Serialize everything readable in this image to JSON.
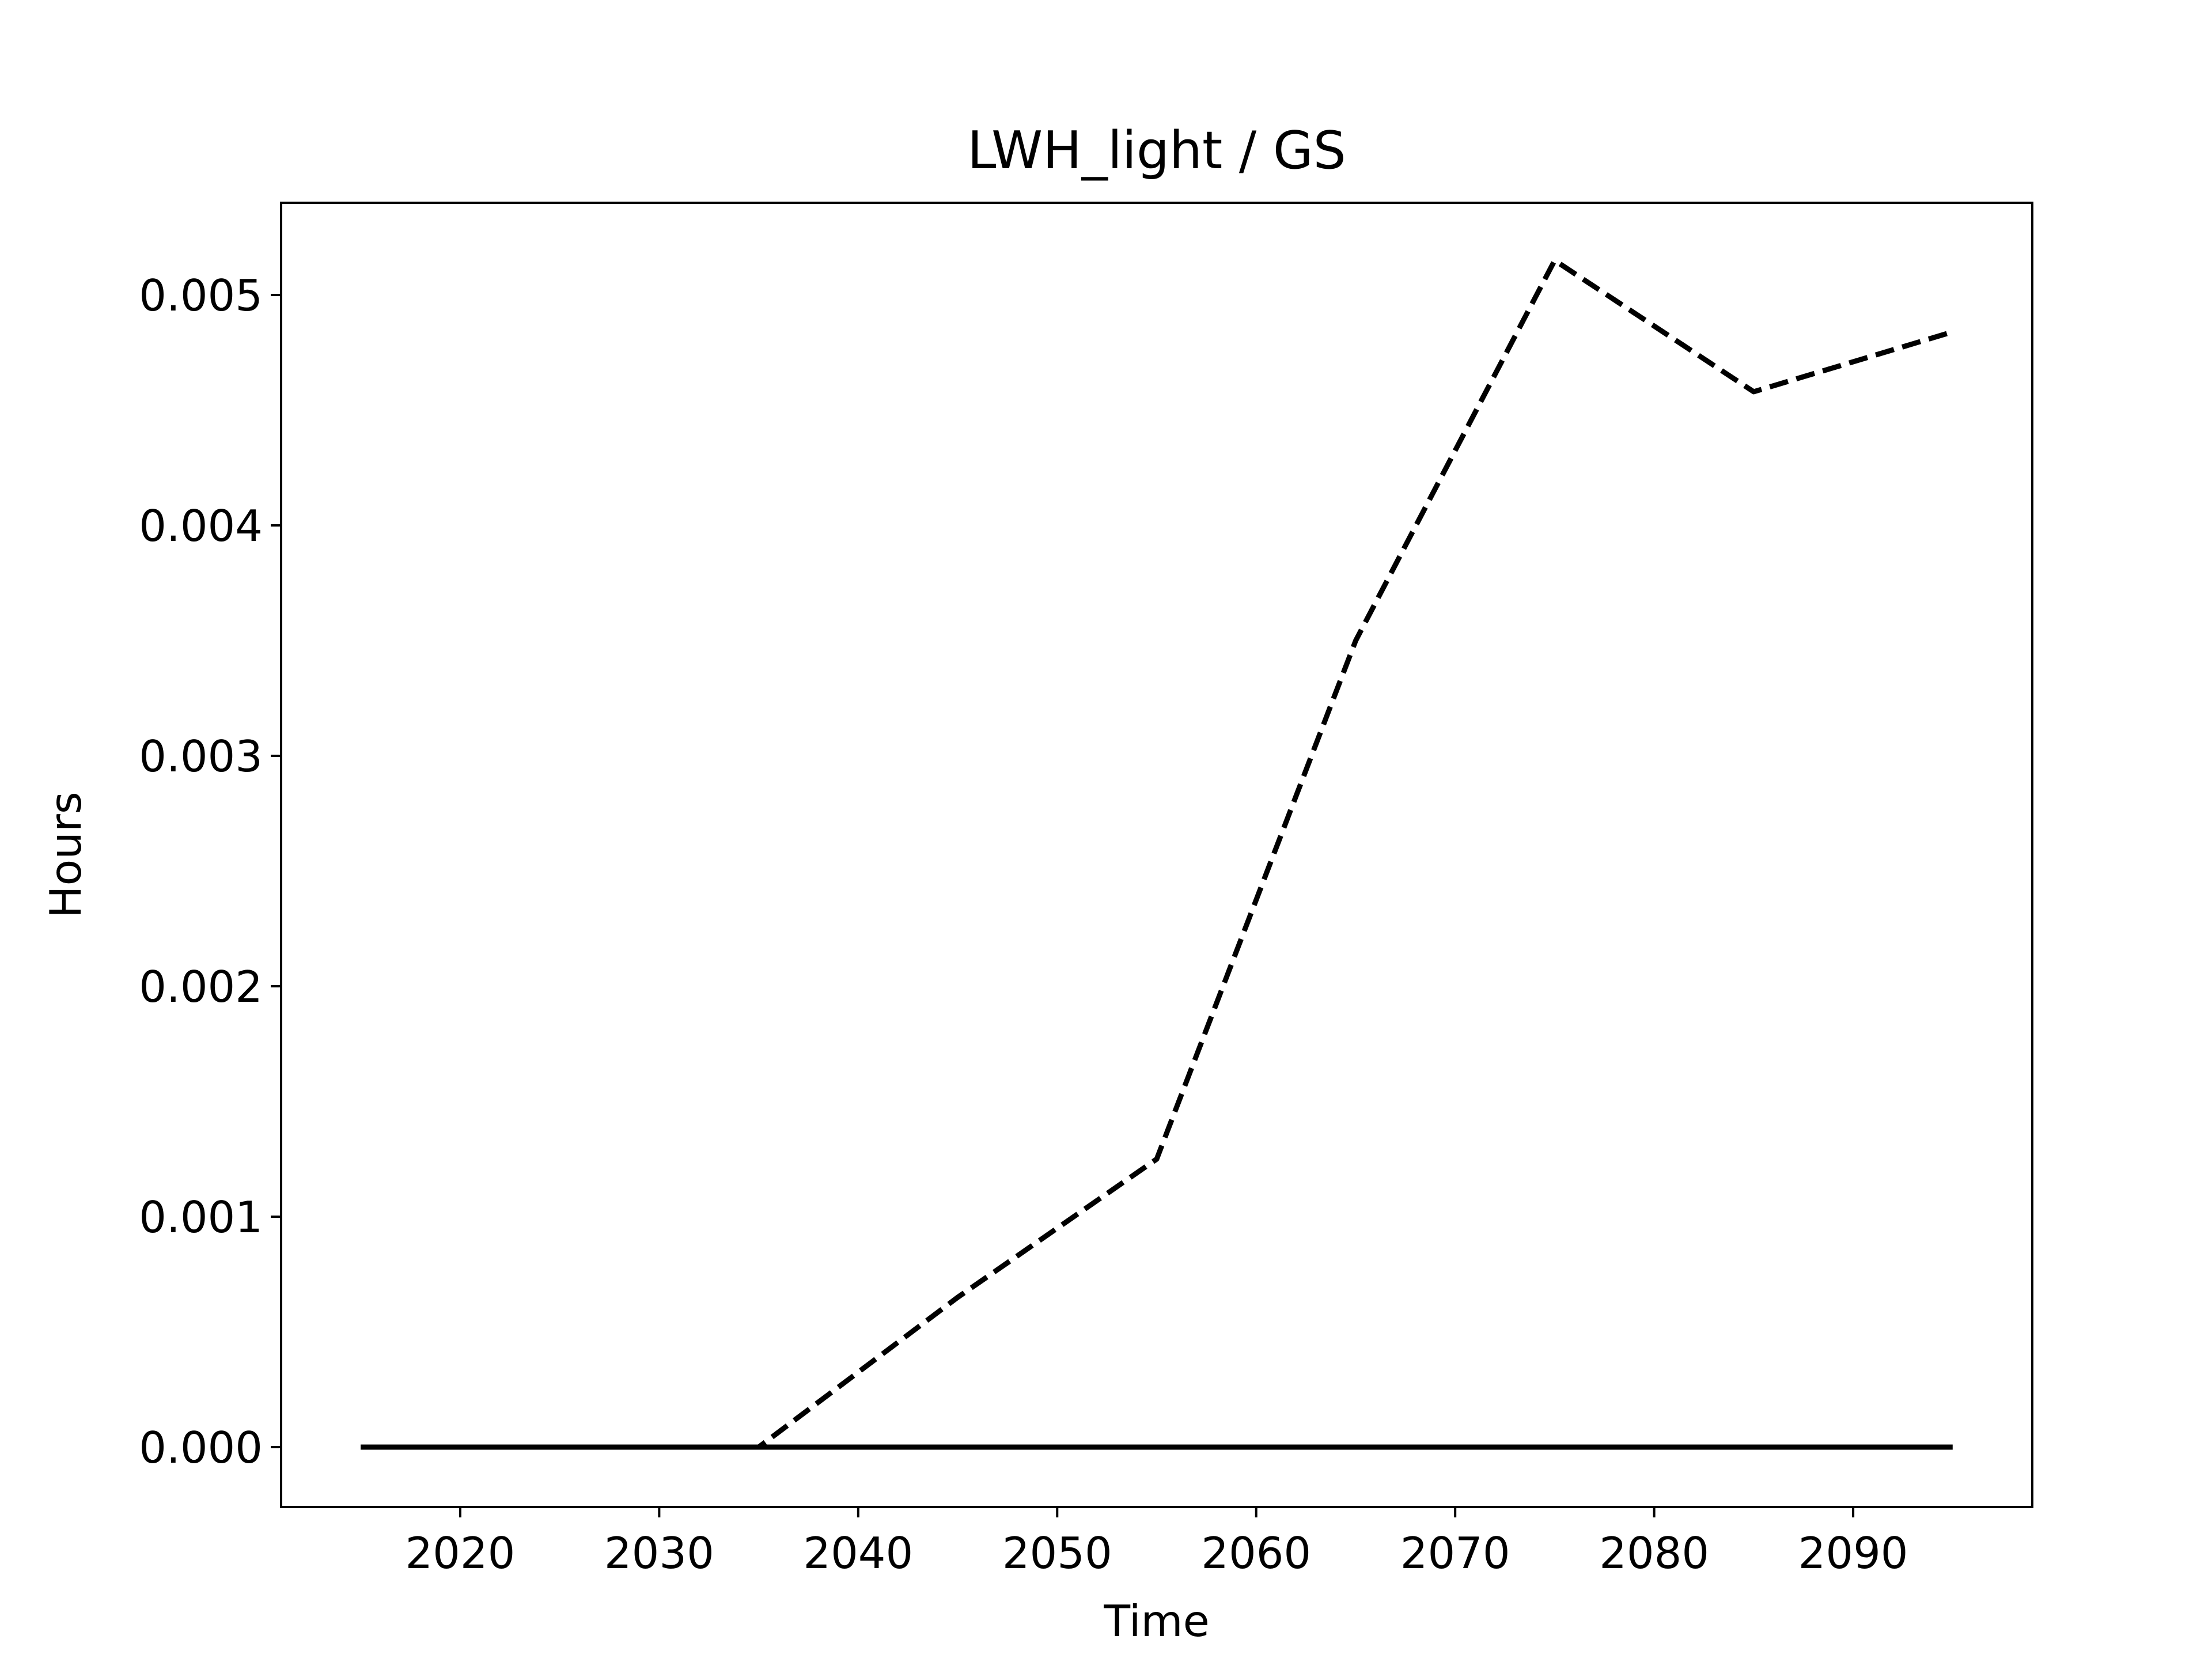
{
  "chart_data": {
    "type": "line",
    "title": "LWH_light / GS",
    "xlabel": "Time",
    "ylabel": "Hours",
    "xlim": [
      2011,
      2099
    ],
    "ylim": [
      -0.00026,
      0.0054
    ],
    "xticks": [
      2020,
      2030,
      2040,
      2050,
      2060,
      2070,
      2080,
      2090
    ],
    "xtick_labels": [
      "2020",
      "2030",
      "2040",
      "2050",
      "2060",
      "2070",
      "2080",
      "2090"
    ],
    "yticks": [
      0.0,
      0.001,
      0.002,
      0.003,
      0.004,
      0.005
    ],
    "ytick_labels": [
      "0.000",
      "0.001",
      "0.002",
      "0.003",
      "0.004",
      "0.005"
    ],
    "grid": false,
    "legend": "none",
    "series": [
      {
        "style": "dashed",
        "color": "#000000",
        "x": [
          2015,
          2025,
          2035,
          2045,
          2055,
          2065,
          2075,
          2085,
          2095
        ],
        "y": [
          0.0,
          0.0,
          0.0,
          0.00065,
          0.00125,
          0.0035,
          0.00515,
          0.00458,
          0.00484
        ]
      },
      {
        "style": "solid",
        "color": "#000000",
        "x": [
          2015,
          2025,
          2035,
          2045,
          2055,
          2065,
          2075,
          2085,
          2095
        ],
        "y": [
          0.0,
          0.0,
          0.0,
          0.0,
          0.0,
          0.0,
          0.0,
          0.0,
          0.0
        ]
      }
    ]
  }
}
